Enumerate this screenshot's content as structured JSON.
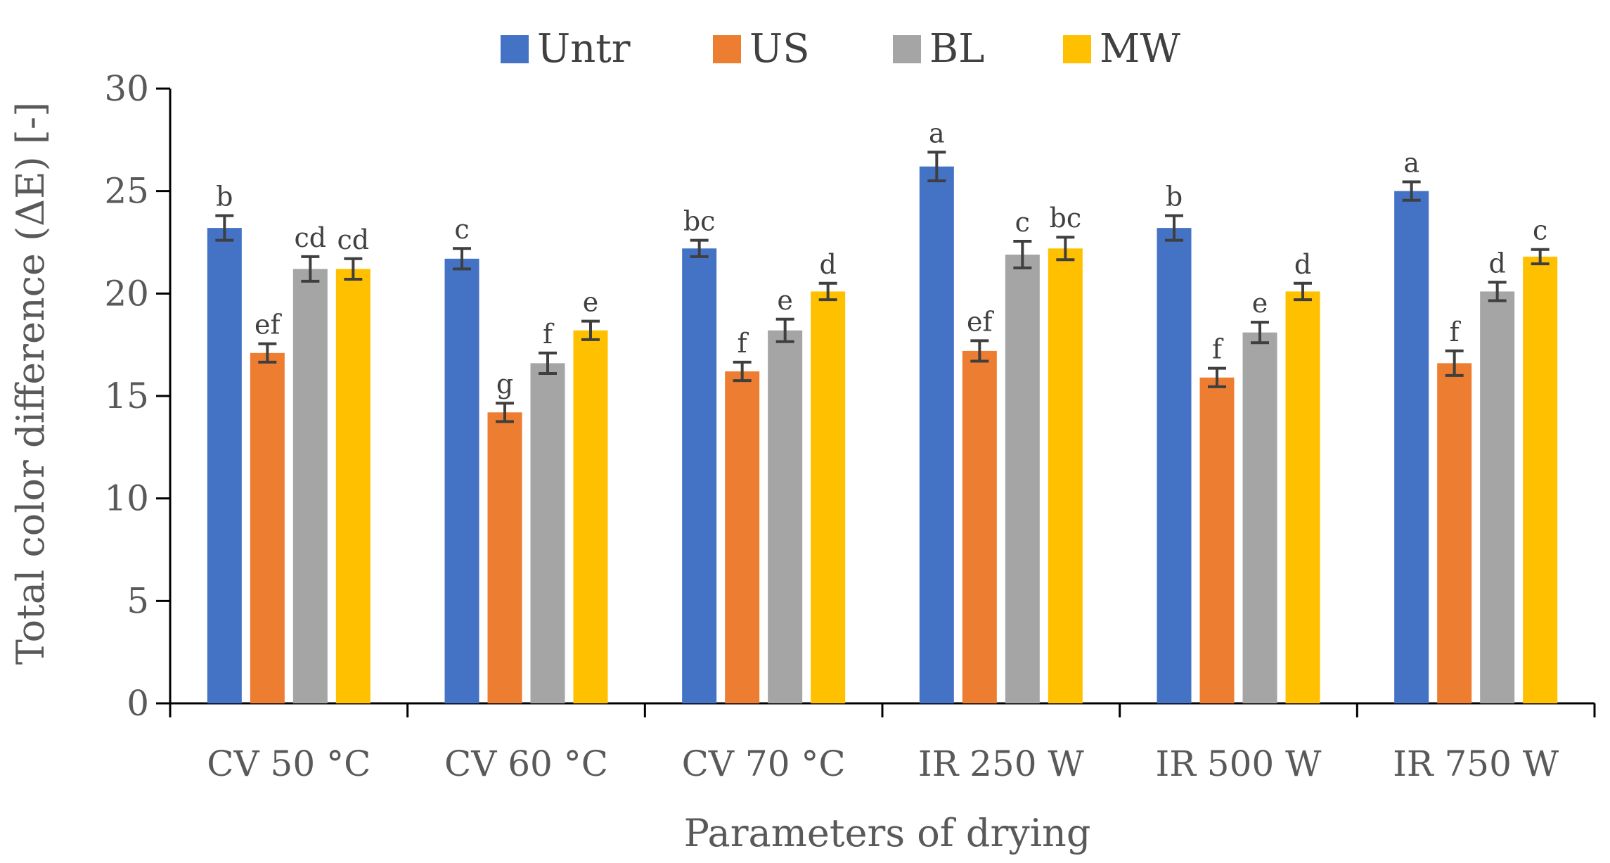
{
  "chart_data": {
    "type": "bar",
    "title": "",
    "xlabel": "Parameters of drying",
    "ylabel": "Total color difference (ΔE) [-]",
    "ylim": [
      0,
      30
    ],
    "yticks": [
      "0",
      "5",
      "10",
      "15",
      "20",
      "25",
      "30"
    ],
    "yticks_values": [
      0,
      5,
      10,
      15,
      20,
      25,
      30
    ],
    "grid": false,
    "legend_position": "top",
    "categories": [
      "CV 50 °C",
      "CV 60 °C",
      "CV 70 °C",
      "IR 250 W",
      "IR 500 W",
      "IR 750 W"
    ],
    "series": [
      {
        "name": "Untr",
        "color": "#4472C4",
        "values": [
          23.2,
          21.7,
          22.2,
          26.2,
          23.2,
          25.0
        ],
        "errors": [
          0.6,
          0.5,
          0.4,
          0.7,
          0.6,
          0.45
        ],
        "labels": [
          "b",
          "c",
          "bc",
          "a",
          "b",
          "a"
        ]
      },
      {
        "name": "US",
        "color": "#ED7D31",
        "values": [
          17.1,
          14.2,
          16.2,
          17.2,
          15.9,
          16.6
        ],
        "errors": [
          0.45,
          0.45,
          0.45,
          0.5,
          0.45,
          0.6
        ],
        "labels": [
          "ef",
          "g",
          "f",
          "ef",
          "f",
          "f"
        ]
      },
      {
        "name": "BL",
        "color": "#A5A5A5",
        "values": [
          21.2,
          16.6,
          18.2,
          21.9,
          18.1,
          20.1
        ],
        "errors": [
          0.6,
          0.5,
          0.55,
          0.65,
          0.5,
          0.45
        ],
        "labels": [
          "cd",
          "f",
          "e",
          "c",
          "e",
          "d"
        ]
      },
      {
        "name": "MW",
        "color": "#FFC000",
        "values": [
          21.2,
          18.2,
          20.1,
          22.2,
          20.1,
          21.8
        ],
        "errors": [
          0.5,
          0.45,
          0.4,
          0.55,
          0.4,
          0.35
        ],
        "labels": [
          "cd",
          "e",
          "d",
          "bc",
          "d",
          "c"
        ]
      }
    ]
  }
}
